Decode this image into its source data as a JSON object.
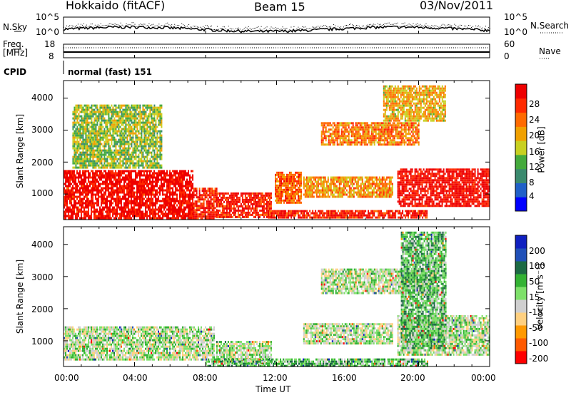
{
  "header": {
    "station": "Hokkaido (fitACF)",
    "beam": "Beam 15",
    "date": "03/Nov/2011"
  },
  "top_panels": {
    "nsky_label": "N.Sky",
    "nsearch_label": "N.Search",
    "freq_label_1": "Freq.",
    "freq_label_2": "[MHz]",
    "nave_label": "Nave",
    "cpid_label": "CPID",
    "cpid_text": "normal (fast) 151",
    "noise_ticks": [
      "10^5",
      "10^0"
    ],
    "freq_ticks": [
      "18",
      "8"
    ],
    "nave_ticks": [
      "60",
      "0"
    ]
  },
  "colors": {
    "power_scale": [
      "#0000ff",
      "#2060c8",
      "#3a8a6e",
      "#44aa3c",
      "#c8d020",
      "#f0a000",
      "#ff6a00",
      "#ff2a00",
      "#ee0000"
    ],
    "velocity_scale": [
      "#ff0000",
      "#ff5a00",
      "#ff9900",
      "#ffd080",
      "#cfcfcf",
      "#7ee06a",
      "#33b233",
      "#1c6a44",
      "#2050b8",
      "#1020c0"
    ]
  },
  "chart_data": [
    {
      "type": "heatmap",
      "panel": "power",
      "ylabel": "Slant Range [km]",
      "y_ticks": [
        "1000",
        "2000",
        "3000",
        "4000"
      ],
      "x_ticks": [
        "00:00",
        "04:00",
        "08:00",
        "12:00",
        "16:00",
        "20:00",
        "00:00"
      ],
      "ylim": [
        200,
        4550
      ],
      "colorbar": {
        "label": "Power [dB]",
        "ticks": [
          "4",
          "8",
          "12",
          "16",
          "20",
          "24",
          "28"
        ],
        "range": [
          0,
          32
        ]
      },
      "regions": [
        {
          "t0": 0.0,
          "t1": 7.3,
          "r0": 250,
          "r1": 1750,
          "level": 0.95
        },
        {
          "t0": 7.3,
          "t1": 8.6,
          "r0": 250,
          "r1": 1200,
          "level": 0.9
        },
        {
          "t0": 8.6,
          "t1": 11.7,
          "r0": 300,
          "r1": 1050,
          "level": 0.9
        },
        {
          "t0": 11.9,
          "t1": 13.4,
          "r0": 700,
          "r1": 1700,
          "level": 0.75
        },
        {
          "t0": 13.5,
          "t1": 18.5,
          "r0": 900,
          "r1": 1550,
          "level": 0.65
        },
        {
          "t0": 14.5,
          "t1": 20.0,
          "r0": 2550,
          "r1": 3250,
          "level": 0.7
        },
        {
          "t0": 18.8,
          "t1": 24.0,
          "r0": 600,
          "r1": 1800,
          "level": 0.95
        },
        {
          "t0": 11.5,
          "t1": 20.5,
          "r0": 250,
          "r1": 500,
          "level": 0.9
        },
        {
          "t0": 0.5,
          "t1": 5.5,
          "r0": 1800,
          "r1": 3800,
          "level": 0.45
        },
        {
          "t0": 18.0,
          "t1": 21.5,
          "r0": 3300,
          "r1": 4400,
          "level": 0.6
        }
      ]
    },
    {
      "type": "heatmap",
      "panel": "velocity",
      "ylabel": "Slant Range [km]",
      "xlabel": "Time UT",
      "y_ticks": [
        "1000",
        "2000",
        "3000",
        "4000"
      ],
      "x_ticks": [
        "00:00",
        "04:00",
        "08:00",
        "12:00",
        "16:00",
        "20:00",
        "00:00"
      ],
      "ylim": [
        200,
        4550
      ],
      "colorbar": {
        "label": "Velocity [m s⁻¹]",
        "ticks": [
          "200",
          "100",
          "50",
          "15",
          "-15",
          "-50",
          "-100",
          "-200"
        ],
        "range": [
          -250,
          250
        ]
      },
      "regions": [
        {
          "t0": 0.0,
          "t1": 8.5,
          "r0": 400,
          "r1": 1450,
          "level": 0.5
        },
        {
          "t0": 8.6,
          "t1": 11.7,
          "r0": 300,
          "r1": 1000,
          "level": 0.5
        },
        {
          "t0": 13.5,
          "t1": 18.5,
          "r0": 900,
          "r1": 1550,
          "level": 0.5
        },
        {
          "t0": 14.5,
          "t1": 21.0,
          "r0": 2500,
          "r1": 3250,
          "level": 0.5
        },
        {
          "t0": 18.8,
          "t1": 24.0,
          "r0": 600,
          "r1": 1800,
          "level": 0.5
        },
        {
          "t0": 8.0,
          "t1": 20.5,
          "r0": 250,
          "r1": 450,
          "level": 0.6
        },
        {
          "t0": 19.0,
          "t1": 21.5,
          "r0": 800,
          "r1": 4400,
          "level": 0.62
        }
      ]
    }
  ]
}
